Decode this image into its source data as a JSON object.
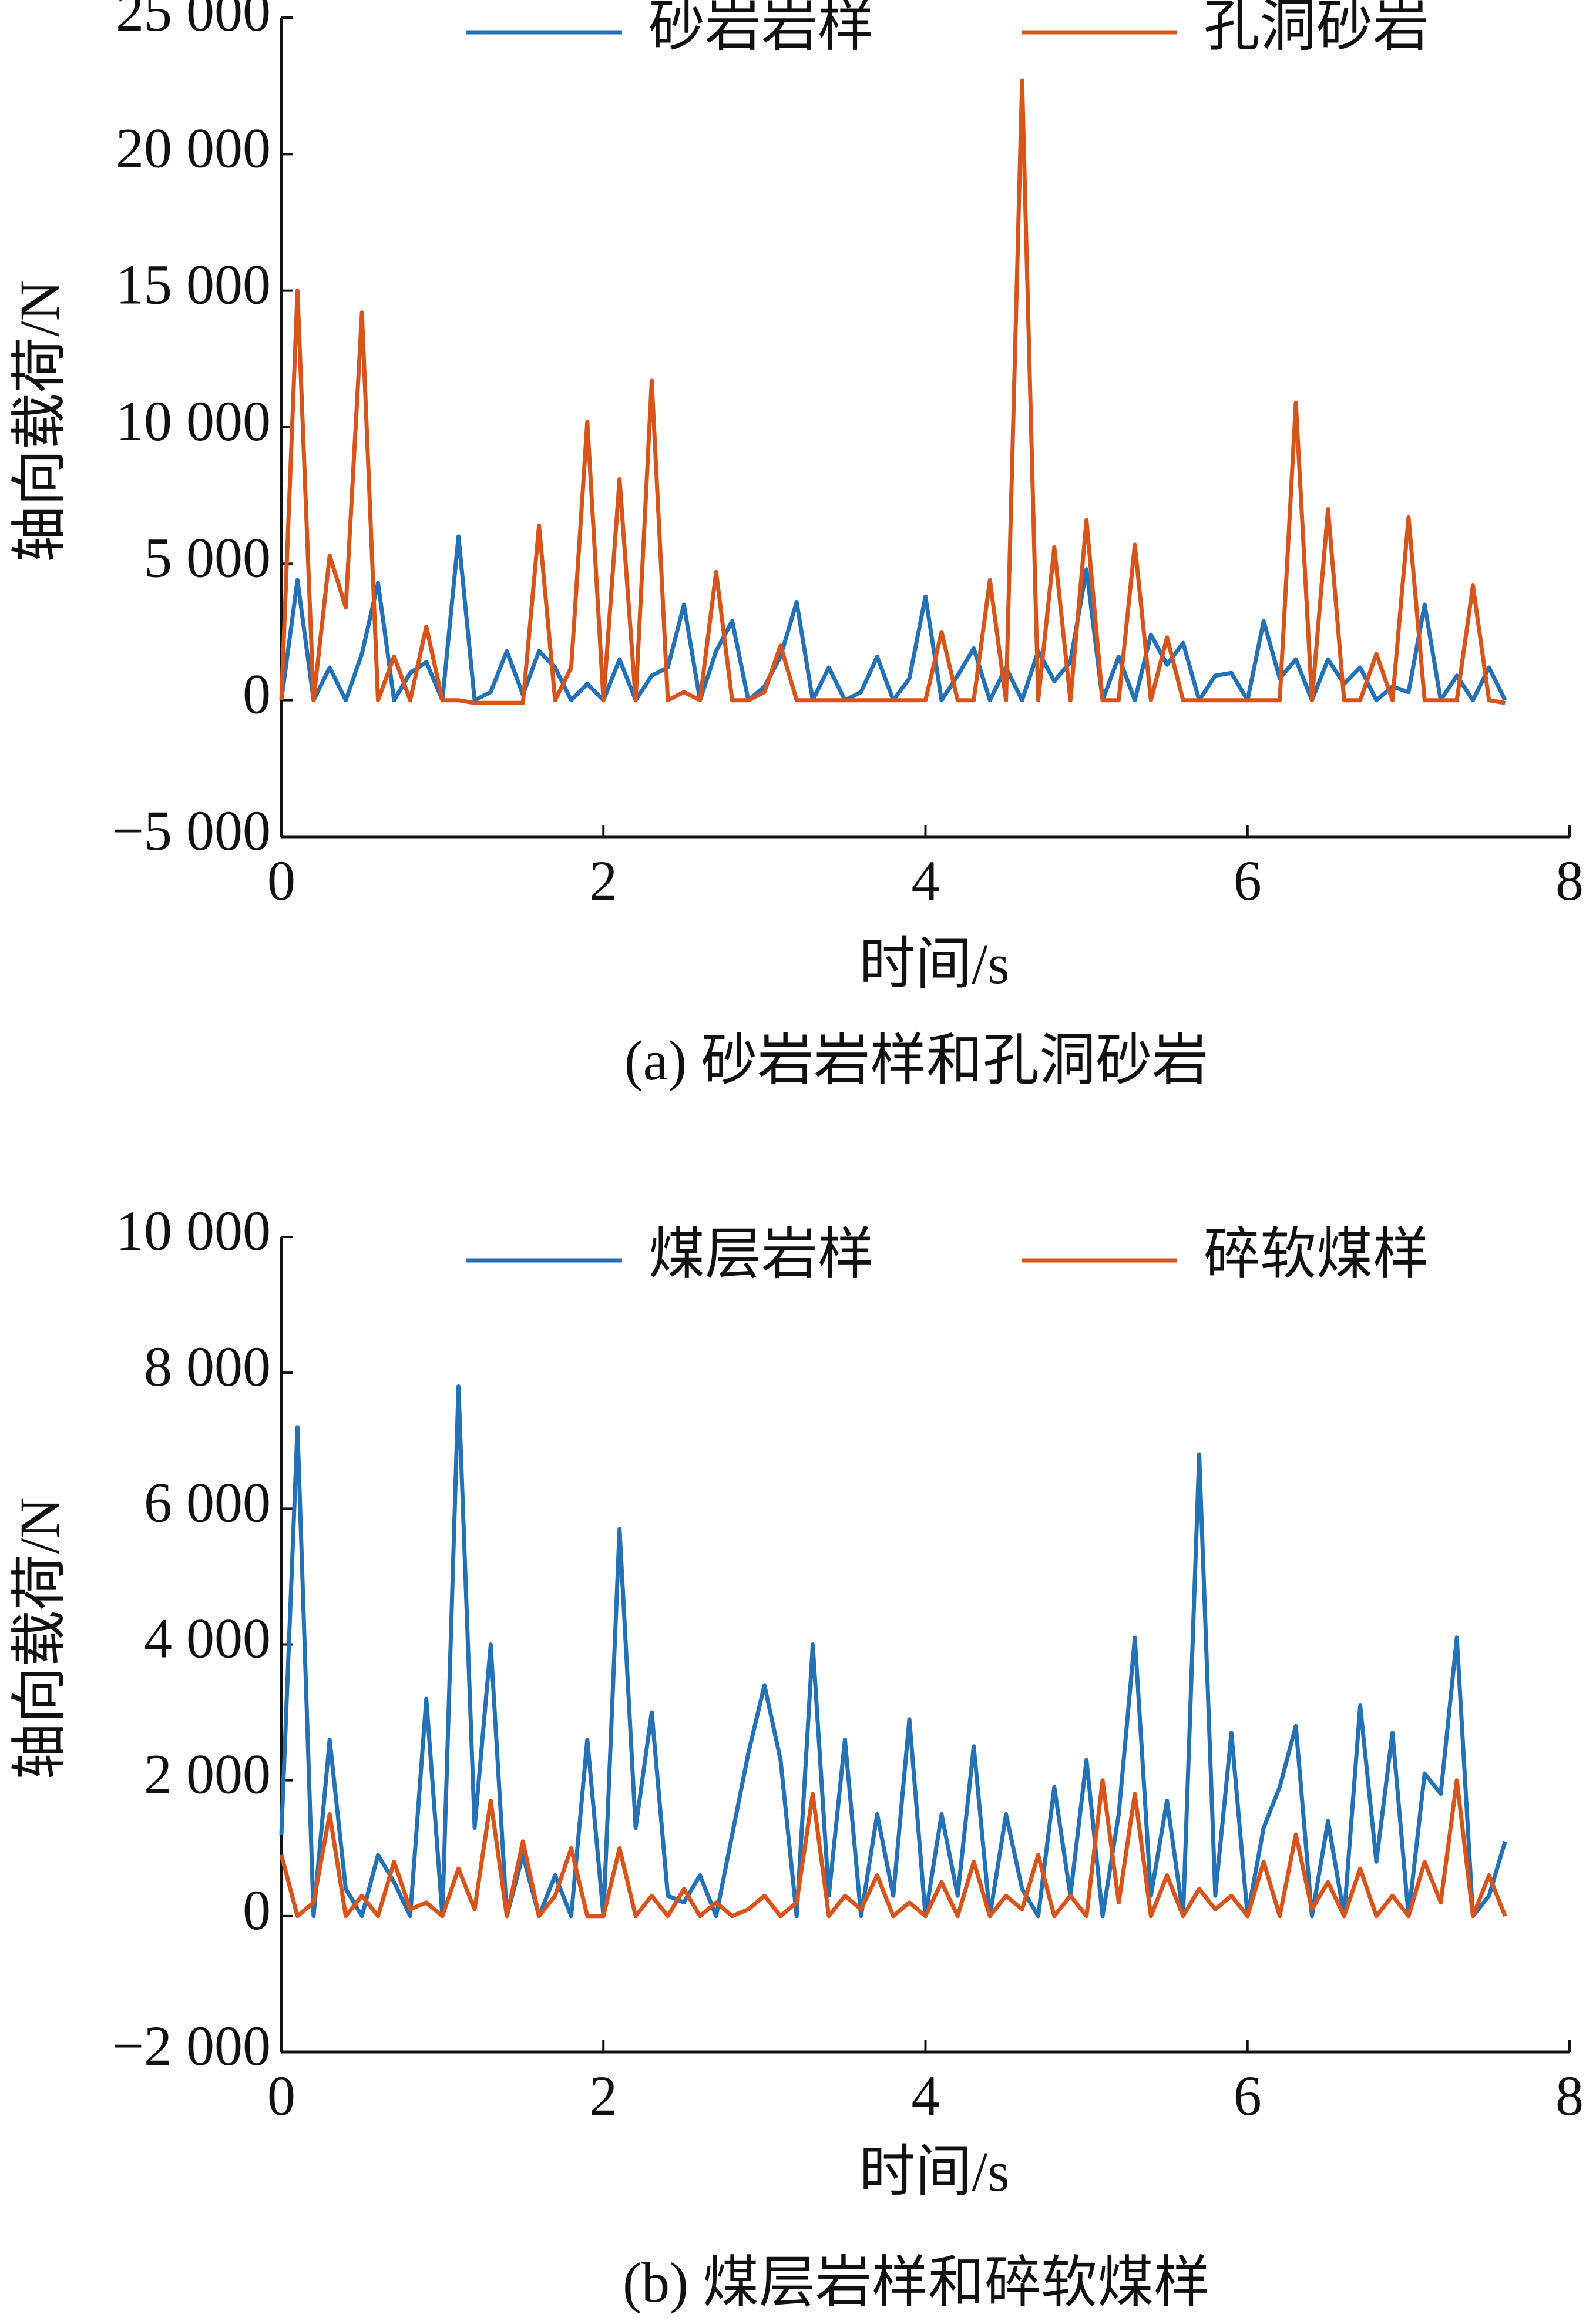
{
  "chart_data": [
    {
      "type": "line",
      "title": "(a)  砂岩岩样和孔洞砂岩",
      "xlabel": "时间/s",
      "ylabel": "轴向载荷/N",
      "legend": "upper center",
      "x": [
        0,
        0.1,
        0.2,
        0.3,
        0.4,
        0.5,
        0.6,
        0.7,
        0.8,
        0.9,
        1,
        1.1,
        1.2,
        1.3,
        1.4,
        1.5,
        1.6,
        1.7,
        1.8,
        1.9,
        2,
        2.1,
        2.2,
        2.3,
        2.4,
        2.5,
        2.6,
        2.7,
        2.8,
        2.9,
        3,
        3.1,
        3.2,
        3.3,
        3.4,
        3.5,
        3.6,
        3.7,
        3.8,
        3.9,
        4,
        4.1,
        4.2,
        4.3,
        4.4,
        4.5,
        4.6,
        4.7,
        4.8,
        4.9,
        5,
        5.1,
        5.2,
        5.3,
        5.4,
        5.5,
        5.6,
        5.7,
        5.8,
        5.9,
        6,
        6.1,
        6.2,
        6.3,
        6.4,
        6.5,
        6.6,
        6.7,
        6.8,
        6.9,
        7,
        7.1,
        7.2,
        7.3,
        7.4,
        7.5,
        7.6
      ],
      "series": [
        {
          "name": "砂岩岩样",
          "color": "#2372b8",
          "values": [
            0,
            4400,
            0,
            1200,
            0,
            1700,
            4300,
            0,
            1000,
            1400,
            0,
            6000,
            0,
            300,
            1800,
            200,
            1800,
            1200,
            0,
            600,
            0,
            1500,
            0,
            900,
            1200,
            3500,
            0,
            1800,
            2900,
            0,
            500,
            1600,
            3600,
            0,
            1200,
            0,
            300,
            1600,
            0,
            800,
            3800,
            0,
            900,
            1900,
            0,
            1200,
            0,
            1800,
            700,
            1400,
            4800,
            0,
            1600,
            0,
            2400,
            1300,
            2100,
            0,
            900,
            1000,
            0,
            2900,
            800,
            1500,
            0,
            1500,
            600,
            1200,
            0,
            500,
            300,
            3500,
            0,
            900,
            0,
            1200,
            0
          ]
        },
        {
          "name": "孔洞砂岩",
          "color": "#d9541a",
          "values": [
            0,
            15000,
            0,
            5300,
            3400,
            14200,
            0,
            1600,
            0,
            2700,
            0,
            0,
            -100,
            -100,
            -100,
            -100,
            6400,
            0,
            1200,
            10200,
            0,
            8100,
            0,
            11700,
            0,
            300,
            0,
            4700,
            0,
            0,
            300,
            2000,
            0,
            0,
            0,
            0,
            0,
            0,
            0,
            0,
            0,
            2500,
            0,
            0,
            4400,
            0,
            22700,
            0,
            5600,
            0,
            6600,
            0,
            0,
            5700,
            0,
            2300,
            0,
            0,
            0,
            0,
            0,
            0,
            0,
            10900,
            0,
            7000,
            0,
            0,
            1700,
            0,
            6700,
            0,
            0,
            0,
            4200,
            0,
            -100
          ]
        }
      ],
      "xlim": [
        0,
        8
      ],
      "xticks": [
        0,
        2,
        4,
        6,
        8
      ],
      "ylim": [
        -5000,
        25000
      ],
      "yticks": [
        {
          "value": -5000,
          "label": "−5 000"
        },
        0,
        {
          "value": 5000,
          "label": "5 000"
        },
        {
          "value": 10000,
          "label": "10 000"
        },
        {
          "value": 15000,
          "label": "15 000"
        },
        {
          "value": 20000,
          "label": "20 000"
        },
        {
          "value": 25000,
          "label": "25 000"
        }
      ]
    },
    {
      "type": "line",
      "title": "(b)  煤层岩样和碎软煤样",
      "xlabel": "时间/s",
      "ylabel": "轴向载荷/N",
      "legend": "upper center",
      "x": [
        0,
        0.1,
        0.2,
        0.3,
        0.4,
        0.5,
        0.6,
        0.7,
        0.8,
        0.9,
        1,
        1.1,
        1.2,
        1.3,
        1.4,
        1.5,
        1.6,
        1.7,
        1.8,
        1.9,
        2,
        2.1,
        2.2,
        2.3,
        2.4,
        2.5,
        2.6,
        2.7,
        2.8,
        2.9,
        3,
        3.1,
        3.2,
        3.3,
        3.4,
        3.5,
        3.6,
        3.7,
        3.8,
        3.9,
        4,
        4.1,
        4.2,
        4.3,
        4.4,
        4.5,
        4.6,
        4.7,
        4.8,
        4.9,
        5,
        5.1,
        5.2,
        5.3,
        5.4,
        5.5,
        5.6,
        5.7,
        5.8,
        5.9,
        6,
        6.1,
        6.2,
        6.3,
        6.4,
        6.5,
        6.6,
        6.7,
        6.8,
        6.9,
        7,
        7.1,
        7.2,
        7.3,
        7.4,
        7.5,
        7.6
      ],
      "series": [
        {
          "name": "煤层岩样",
          "color": "#2372b8",
          "values": [
            1200,
            7200,
            0,
            2600,
            400,
            0,
            900,
            500,
            0,
            3200,
            0,
            7800,
            1300,
            4000,
            0,
            900,
            0,
            600,
            0,
            2600,
            0,
            5700,
            1300,
            3000,
            300,
            200,
            600,
            0,
            1200,
            2400,
            3400,
            2300,
            0,
            4000,
            300,
            2600,
            0,
            1500,
            300,
            2900,
            0,
            1500,
            300,
            2500,
            0,
            1500,
            400,
            0,
            1900,
            300,
            2300,
            0,
            1500,
            4100,
            300,
            1700,
            0,
            6800,
            300,
            2700,
            0,
            1300,
            1900,
            2800,
            0,
            1400,
            0,
            3100,
            800,
            2700,
            0,
            2100,
            1800,
            4100,
            0,
            300,
            1100
          ]
        },
        {
          "name": "碎软煤样",
          "color": "#d9541a",
          "values": [
            900,
            0,
            200,
            1500,
            0,
            300,
            0,
            800,
            100,
            200,
            0,
            700,
            100,
            1700,
            0,
            1100,
            0,
            300,
            1000,
            0,
            0,
            1000,
            0,
            300,
            0,
            400,
            0,
            200,
            0,
            100,
            300,
            0,
            200,
            1800,
            0,
            300,
            100,
            600,
            0,
            200,
            0,
            500,
            0,
            800,
            0,
            300,
            100,
            900,
            0,
            300,
            0,
            2000,
            200,
            1800,
            0,
            600,
            0,
            400,
            100,
            300,
            0,
            800,
            0,
            1200,
            100,
            500,
            0,
            700,
            0,
            300,
            0,
            800,
            200,
            2000,
            0,
            600,
            0
          ]
        }
      ],
      "xlim": [
        0,
        8
      ],
      "xticks": [
        0,
        2,
        4,
        6,
        8
      ],
      "ylim": [
        -2000,
        10000
      ],
      "yticks": [
        {
          "value": -2000,
          "label": "−2 000"
        },
        0,
        {
          "value": 2000,
          "label": "2 000"
        },
        {
          "value": 4000,
          "label": "4 000"
        },
        {
          "value": 6000,
          "label": "6 000"
        },
        {
          "value": 8000,
          "label": "8 000"
        },
        {
          "value": 10000,
          "label": "10 000"
        }
      ]
    }
  ]
}
